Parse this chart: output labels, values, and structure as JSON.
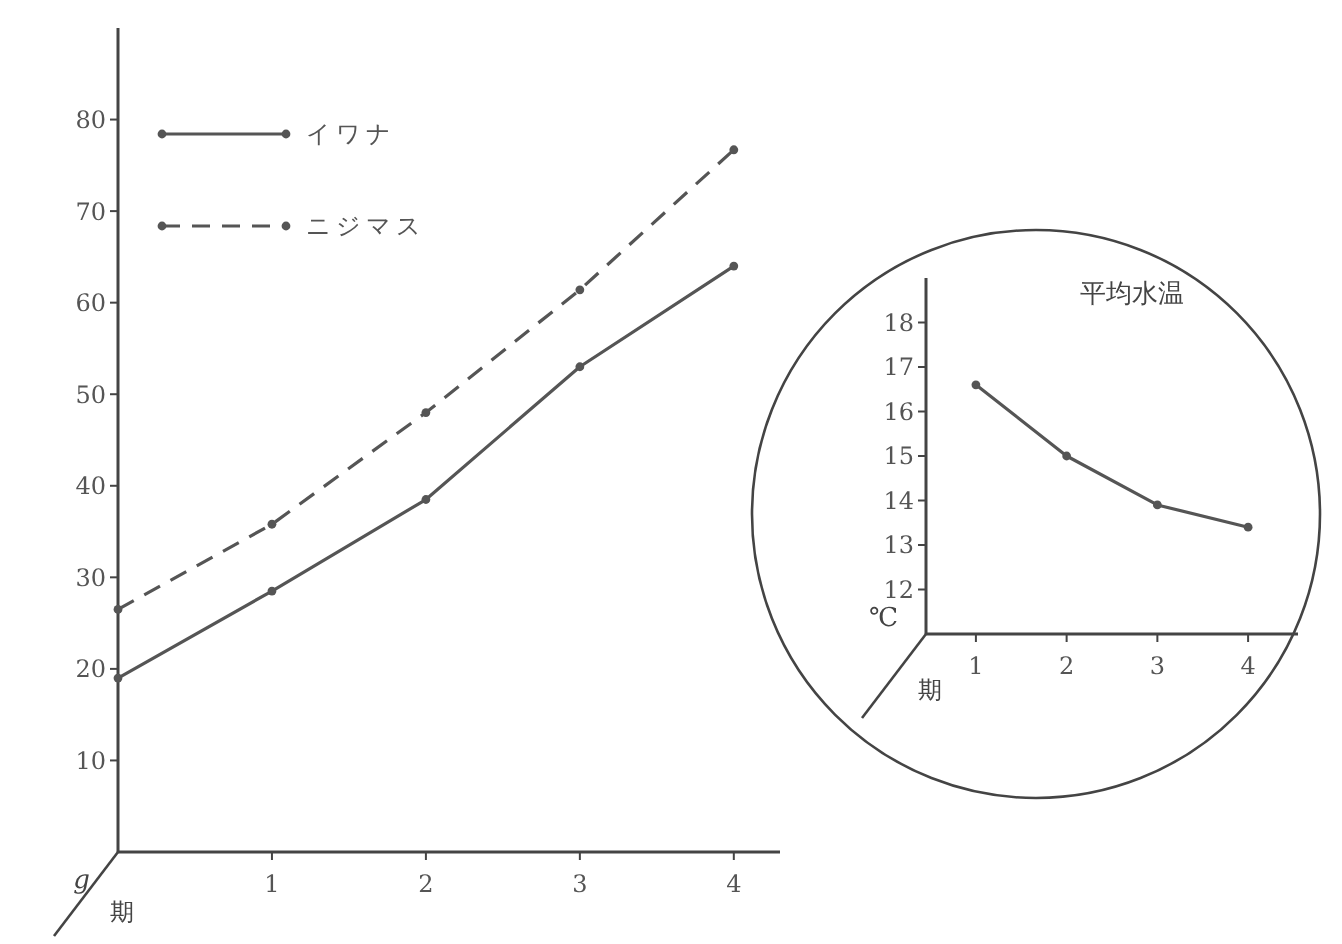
{
  "chart_data": [
    {
      "type": "line",
      "xlabel": "期",
      "ylabel": "g",
      "x": [
        0,
        1,
        2,
        3,
        4
      ],
      "xlim": [
        0,
        4.3
      ],
      "ylim": [
        0,
        90
      ],
      "xticks": [
        1,
        2,
        3,
        4
      ],
      "yticks": [
        10,
        20,
        30,
        40,
        50,
        60,
        70,
        80
      ],
      "legend": "top left",
      "marker": "circle",
      "series": [
        {
          "name": "イワナ",
          "color": "#555555",
          "line_style": "solid",
          "values": [
            19,
            28.5,
            38.5,
            53,
            64
          ]
        },
        {
          "name": "ニジマス",
          "color": "#555555",
          "line_style": "dashed",
          "values": [
            26.5,
            35.8,
            48,
            61.4,
            76.7
          ]
        }
      ]
    },
    {
      "type": "line",
      "title": "平均水温",
      "xlabel": "期",
      "ylabel": "℃",
      "x": [
        1,
        2,
        3,
        4
      ],
      "xlim": [
        0.45,
        4.55
      ],
      "ylim": [
        11,
        19
      ],
      "xticks": [
        1,
        2,
        3,
        4
      ],
      "yticks": [
        12,
        13,
        14,
        15,
        16,
        17,
        18
      ],
      "marker": "circle",
      "series": [
        {
          "color": "#555555",
          "line_style": "solid",
          "values": [
            16.6,
            15,
            13.9,
            13.4
          ]
        }
      ]
    }
  ]
}
